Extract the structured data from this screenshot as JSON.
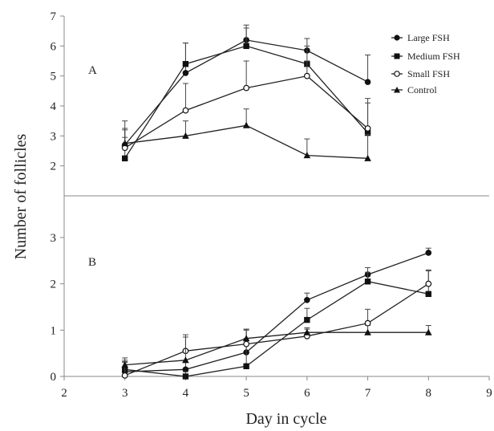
{
  "chart_data": {
    "type": "line",
    "xlabel": "Day in cycle",
    "ylabel": "Number of follicles",
    "x_ticks": [
      2,
      3,
      4,
      5,
      6,
      7,
      8,
      9
    ],
    "xlim": [
      2,
      9
    ],
    "legend_position": "top-right",
    "panels": [
      {
        "label": "A",
        "ylim": [
          1.0,
          7.0
        ],
        "y_ticks": [
          2,
          3,
          4,
          5,
          6,
          7
        ],
        "series": [
          {
            "name": "Large FSH",
            "marker": "circle-filled",
            "x": [
              3,
              4,
              5,
              6,
              7
            ],
            "y": [
              2.7,
              5.1,
              6.2,
              5.85,
              4.8
            ],
            "err": [
              0.8,
              1.0,
              0.5,
              0.4,
              0.9
            ]
          },
          {
            "name": "Medium FSH",
            "marker": "square-filled",
            "x": [
              3,
              4,
              5,
              6,
              7
            ],
            "y": [
              2.25,
              5.4,
              6.0,
              5.4,
              3.1
            ],
            "err": [
              0.7,
              0.7,
              0.6,
              0.6,
              1.0
            ]
          },
          {
            "name": "Small FSH",
            "marker": "circle-open",
            "x": [
              3,
              4,
              5,
              6,
              7
            ],
            "y": [
              2.6,
              3.85,
              4.6,
              5.0,
              3.25
            ],
            "err": [
              0.6,
              0.9,
              0.9,
              0.5,
              1.0
            ]
          },
          {
            "name": "Control",
            "marker": "triangle-filled",
            "x": [
              3,
              4,
              5,
              6,
              7
            ],
            "y": [
              2.75,
              3.0,
              3.35,
              2.35,
              2.25
            ],
            "err": [
              0.5,
              0.5,
              0.55,
              0.55,
              0.8
            ]
          }
        ]
      },
      {
        "label": "B",
        "ylim": [
          0,
          3.9
        ],
        "y_ticks": [
          0,
          1,
          2,
          3
        ],
        "series": [
          {
            "name": "Large FSH",
            "marker": "circle-filled",
            "x": [
              3,
              4,
              5,
              6,
              7,
              8
            ],
            "y": [
              0.1,
              0.15,
              0.52,
              1.65,
              2.2,
              2.67
            ],
            "err": [
              0.2,
              0.15,
              0.3,
              0.15,
              0.15,
              0.1
            ]
          },
          {
            "name": "Medium FSH",
            "marker": "square-filled",
            "x": [
              3,
              4,
              5,
              6,
              7,
              8
            ],
            "y": [
              0.15,
              0.0,
              0.22,
              1.22,
              2.05,
              1.78
            ],
            "err": [
              0.2,
              0.1,
              0.8,
              0.25,
              0.2,
              0.5
            ]
          },
          {
            "name": "Small FSH",
            "marker": "circle-open",
            "x": [
              3,
              4,
              5,
              6,
              7,
              8
            ],
            "y": [
              0.02,
              0.55,
              0.7,
              0.87,
              1.15,
              2.0
            ],
            "err": [
              0.3,
              0.35,
              0.3,
              0.15,
              0.3,
              0.3
            ]
          },
          {
            "name": "Control",
            "marker": "triangle-filled",
            "x": [
              3,
              4,
              5,
              6,
              7,
              8
            ],
            "y": [
              0.25,
              0.35,
              0.82,
              0.95,
              0.95,
              0.95
            ],
            "err": [
              0.15,
              0.5,
              0.2,
              0.1,
              0.15,
              0.15
            ]
          }
        ]
      }
    ]
  }
}
